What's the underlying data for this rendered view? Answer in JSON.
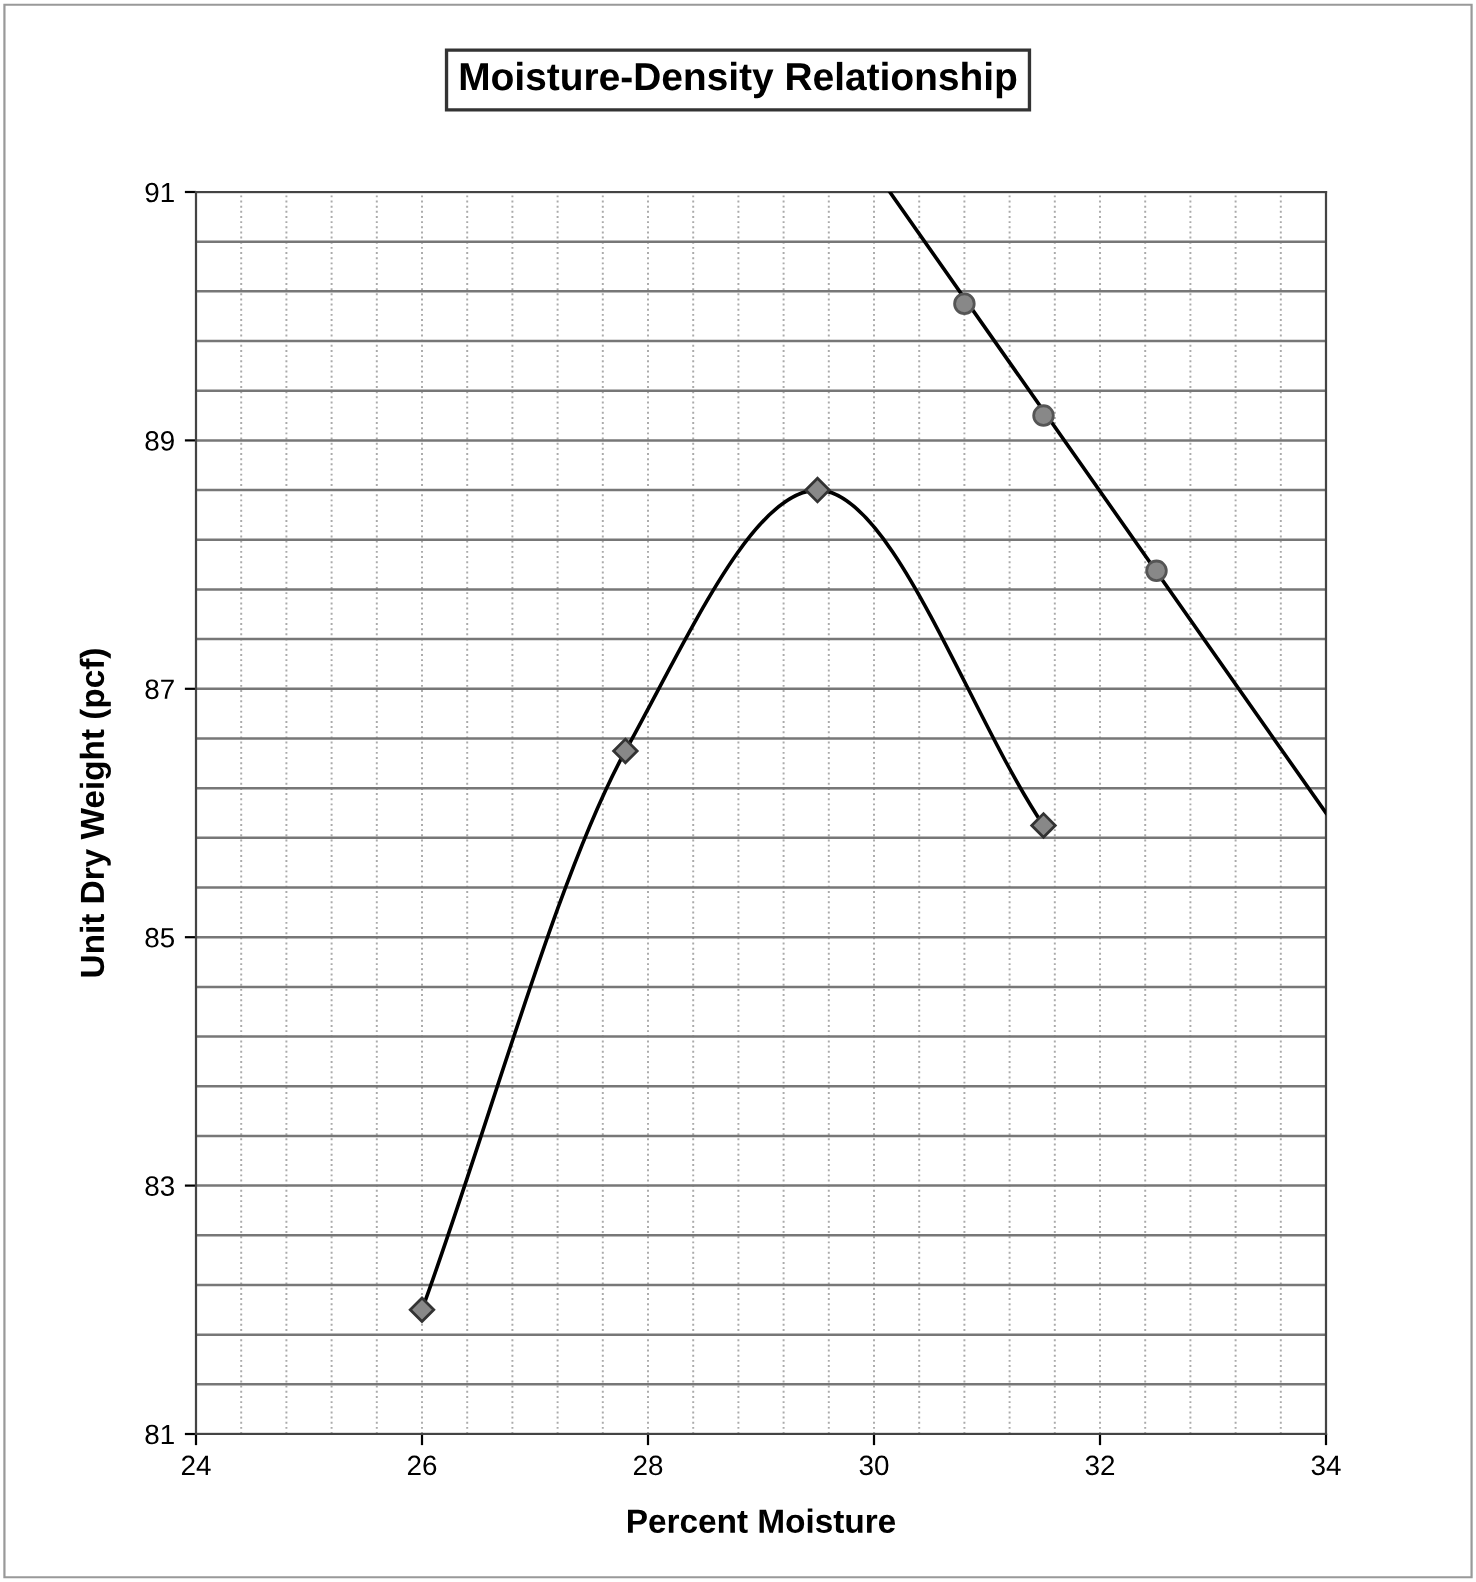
{
  "chart_data": {
    "type": "line",
    "title": "Moisture-Density Relationship",
    "xlabel": "Percent Moisture",
    "ylabel": "Unit Dry Weight (pcf)",
    "series": [
      {
        "color": "#000000",
        "marker": "diamond",
        "x": [
          26,
          27.8,
          29.5,
          31.5
        ],
        "values": [
          82.0,
          86.5,
          88.6,
          85.9
        ]
      },
      {
        "type": "scatter",
        "color": "#888888",
        "marker": "circle",
        "x": [
          30.8,
          31.5,
          32.5
        ],
        "values": [
          90.1,
          89.2,
          87.95
        ]
      },
      {
        "color": "#000000",
        "marker": "none",
        "x": [
          30.14,
          34
        ],
        "values": [
          91,
          86
        ]
      }
    ],
    "xlim": [
      24,
      34
    ],
    "ylim": [
      81,
      91
    ],
    "xticks": [
      24,
      {
        "value": 24.4,
        "label": null
      },
      {
        "value": 24.8,
        "label": null
      },
      {
        "value": 25.2,
        "label": null
      },
      {
        "value": 25.6,
        "label": null
      },
      26,
      {
        "value": 26.4,
        "label": null
      },
      {
        "value": 26.8,
        "label": null
      },
      {
        "value": 27.2,
        "label": null
      },
      {
        "value": 27.6,
        "label": null
      },
      28,
      {
        "value": 28.4,
        "label": null
      },
      {
        "value": 28.8,
        "label": null
      },
      {
        "value": 29.2,
        "label": null
      },
      {
        "value": 29.6,
        "label": null
      },
      30,
      {
        "value": 30.4,
        "label": null
      },
      {
        "value": 30.8,
        "label": null
      },
      {
        "value": 31.2,
        "label": null
      },
      {
        "value": 31.6,
        "label": null
      },
      32,
      {
        "value": 32.4,
        "label": null
      },
      {
        "value": 32.8,
        "label": null
      },
      {
        "value": 33.2,
        "label": null
      },
      {
        "value": 33.6,
        "label": null
      },
      34
    ],
    "yticks": [
      81,
      {
        "value": 81.4,
        "label": null
      },
      {
        "value": 81.8,
        "label": null
      },
      {
        "value": 82.2,
        "label": null
      },
      {
        "value": 82.6,
        "label": null
      },
      83,
      {
        "value": 83.4,
        "label": null
      },
      {
        "value": 83.8,
        "label": null
      },
      {
        "value": 84.2,
        "label": null
      },
      {
        "value": 84.6,
        "label": null
      },
      85,
      {
        "value": 85.4,
        "label": null
      },
      {
        "value": 85.8,
        "label": null
      },
      {
        "value": 86.2,
        "label": null
      },
      {
        "value": 86.6,
        "label": null
      },
      87,
      {
        "value": 87.4,
        "label": null
      },
      {
        "value": 87.8,
        "label": null
      },
      {
        "value": 88.2,
        "label": null
      },
      {
        "value": 88.6,
        "label": null
      },
      89,
      {
        "value": 89.4,
        "label": null
      },
      {
        "value": 89.8,
        "label": null
      },
      {
        "value": 90.2,
        "label": null
      },
      {
        "value": 90.6,
        "label": null
      },
      91
    ],
    "grid": true,
    "legend": false
  }
}
